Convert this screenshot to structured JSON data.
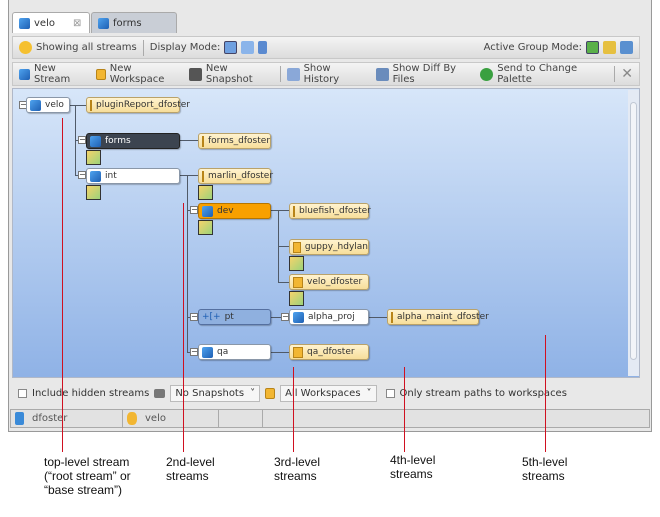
{
  "tabs": [
    {
      "label": "velo",
      "active": true
    },
    {
      "label": "forms",
      "active": false
    }
  ],
  "toolbar1": {
    "showing": "Showing all streams",
    "display_mode_label": "Display Mode:",
    "active_group_label": "Active Group Mode:"
  },
  "toolbar2": {
    "new_stream": "New Stream",
    "new_workspace": "New Workspace",
    "new_snapshot": "New Snapshot",
    "show_history": "Show History",
    "show_diff": "Show Diff By Files",
    "send_palette": "Send to Change Palette"
  },
  "nodes": [
    {
      "label": "velo",
      "type": "stream"
    },
    {
      "label": "pluginReport_dfoster",
      "type": "workspace"
    },
    {
      "label": "forms",
      "type": "stream",
      "state": "selected"
    },
    {
      "label": "forms_dfoster",
      "type": "workspace"
    },
    {
      "label": "int",
      "type": "stream"
    },
    {
      "label": "marlin_dfoster",
      "type": "workspace"
    },
    {
      "label": "dev",
      "type": "stream",
      "state": "highlighted"
    },
    {
      "label": "bluefish_dfoster",
      "type": "workspace"
    },
    {
      "label": "guppy_hdylan",
      "type": "workspace"
    },
    {
      "label": "velo_dfoster",
      "type": "workspace"
    },
    {
      "label": "pt",
      "type": "gated-stream"
    },
    {
      "label": "alpha_proj",
      "type": "stream"
    },
    {
      "label": "alpha_maint_dfoster",
      "type": "workspace"
    },
    {
      "label": "qa",
      "type": "stream"
    },
    {
      "label": "qa_dfoster",
      "type": "workspace"
    }
  ],
  "options": {
    "include_hidden": "Include hidden streams",
    "snapshots": "No Snapshots",
    "workspaces": "All Workspaces",
    "only_paths": "Only stream paths to workspaces"
  },
  "status": {
    "user": "dfoster",
    "depot": "velo"
  },
  "annotations": [
    "top-level stream\n(“root stream” or\n“base stream”)",
    "2nd-level\nstreams",
    "3rd-level\nstreams",
    "4th-level\nstreams",
    "5th-level\nstreams"
  ],
  "colors": {
    "selected": "#3c4450",
    "highlighted": "#f8a000",
    "workspace": "#f7de9a",
    "annotation_line": "#d01020"
  }
}
